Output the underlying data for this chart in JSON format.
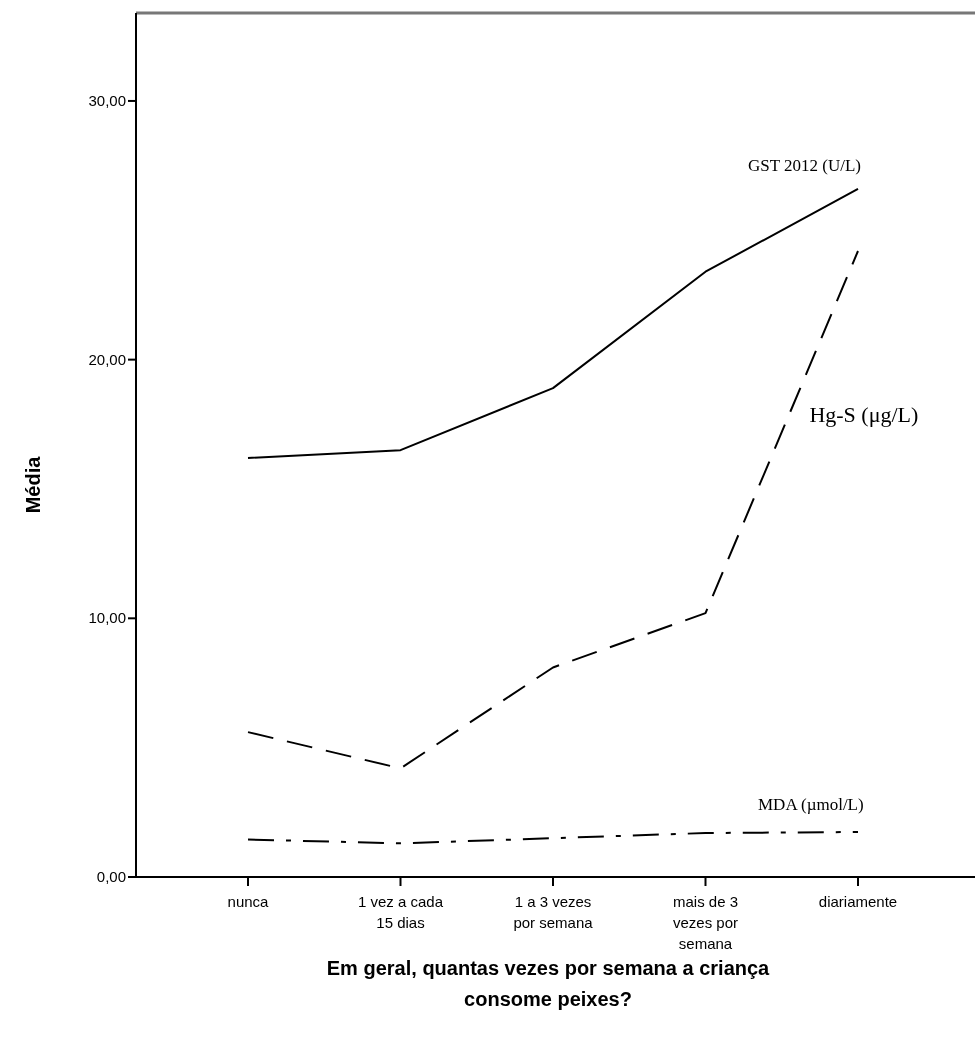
{
  "chart_data": {
    "type": "line",
    "xlabel": "Em geral, quantas vezes por semana a criança consome peixes?",
    "ylabel": "Média",
    "categories": [
      "nunca",
      "1 vez a cada\n15 dias",
      "1 a 3 vezes\npor semana",
      "mais de 3\nvezes por\nsemana",
      "diariamente"
    ],
    "ylim": [
      0,
      33.4
    ],
    "yticks": [
      {
        "value": 0,
        "label": "0,00"
      },
      {
        "value": 10,
        "label": "10,00"
      },
      {
        "value": 20,
        "label": "20,00"
      },
      {
        "value": 30,
        "label": "30,00"
      }
    ],
    "grid": false,
    "marker": "none",
    "series": [
      {
        "name": "GST 2012 (U/L)",
        "color": "#000000",
        "line_style": "solid",
        "values": [
          16.2,
          16.5,
          18.9,
          23.4,
          26.6
        ]
      },
      {
        "name": "Hg-S (μg/L)",
        "color": "#000000",
        "line_style": "dashed",
        "values": [
          5.6,
          4.2,
          8.1,
          10.2,
          24.2
        ]
      },
      {
        "name": "MDA (µmol/L)",
        "color": "#000000",
        "line_style": "dashdot",
        "values": [
          1.45,
          1.3,
          1.5,
          1.7,
          1.74
        ]
      }
    ]
  }
}
